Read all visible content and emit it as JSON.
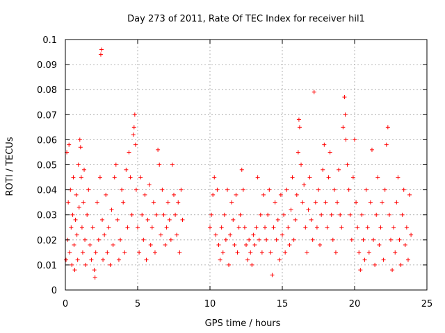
{
  "chart_data": {
    "type": "scatter",
    "title": "Day 273 of 2011, Rate Of TEC Index for receiver hil1",
    "xlabel": "GPS time / hours",
    "ylabel": "ROTI / TECUs",
    "xlim": [
      0,
      25
    ],
    "ylim": [
      0,
      0.1
    ],
    "x_ticks": [
      "0",
      "5",
      "10",
      "15",
      "20",
      "25"
    ],
    "y_ticks": [
      "0",
      "0.01",
      "0.02",
      "0.03",
      "0.04",
      "0.05",
      "0.06",
      "0.07",
      "0.08",
      "0.09",
      "0.1"
    ],
    "grid": true,
    "marker": "plus",
    "color": "#ff0000",
    "series": [
      {
        "points": [
          [
            0.05,
            0.012
          ],
          [
            0.1,
            0.055
          ],
          [
            0.15,
            0.02
          ],
          [
            0.2,
            0.035
          ],
          [
            0.25,
            0.058
          ],
          [
            0.3,
            0.015
          ],
          [
            0.35,
            0.04
          ],
          [
            0.4,
            0.025
          ],
          [
            0.45,
            0.01
          ],
          [
            0.5,
            0.03
          ],
          [
            0.55,
            0.045
          ],
          [
            0.6,
            0.018
          ],
          [
            0.65,
            0.008
          ],
          [
            0.7,
            0.028
          ],
          [
            0.75,
            0.038
          ],
          [
            0.8,
            0.022
          ],
          [
            0.85,
            0.012
          ],
          [
            0.9,
            0.05
          ],
          [
            0.95,
            0.033
          ],
          [
            1.0,
            0.06
          ],
          [
            1.05,
            0.057
          ],
          [
            1.1,
            0.045
          ],
          [
            1.15,
            0.025
          ],
          [
            1.2,
            0.015
          ],
          [
            1.25,
            0.035
          ],
          [
            1.3,
            0.048
          ],
          [
            1.35,
            0.02
          ],
          [
            1.4,
            0.01
          ],
          [
            1.5,
            0.03
          ],
          [
            1.6,
            0.04
          ],
          [
            1.7,
            0.018
          ],
          [
            1.8,
            0.012
          ],
          [
            1.9,
            0.025
          ],
          [
            2.0,
            0.008
          ],
          [
            2.05,
            0.005
          ],
          [
            2.1,
            0.015
          ],
          [
            2.2,
            0.035
          ],
          [
            2.3,
            0.02
          ],
          [
            2.4,
            0.045
          ],
          [
            2.45,
            0.094
          ],
          [
            2.5,
            0.096
          ],
          [
            2.55,
            0.028
          ],
          [
            2.6,
            0.012
          ],
          [
            2.7,
            0.022
          ],
          [
            2.8,
            0.038
          ],
          [
            2.9,
            0.015
          ],
          [
            3.0,
            0.025
          ],
          [
            3.1,
            0.01
          ],
          [
            3.2,
            0.032
          ],
          [
            3.3,
            0.018
          ],
          [
            3.4,
            0.045
          ],
          [
            3.5,
            0.05
          ],
          [
            3.6,
            0.028
          ],
          [
            3.7,
            0.012
          ],
          [
            3.8,
            0.02
          ],
          [
            3.9,
            0.04
          ],
          [
            4.0,
            0.035
          ],
          [
            4.1,
            0.015
          ],
          [
            4.2,
            0.048
          ],
          [
            4.3,
            0.025
          ],
          [
            4.4,
            0.055
          ],
          [
            4.5,
            0.045
          ],
          [
            4.6,
            0.03
          ],
          [
            4.7,
            0.062
          ],
          [
            4.75,
            0.065
          ],
          [
            4.8,
            0.07
          ],
          [
            4.85,
            0.058
          ],
          [
            4.9,
            0.04
          ],
          [
            5.0,
            0.025
          ],
          [
            5.1,
            0.015
          ],
          [
            5.2,
            0.045
          ],
          [
            5.3,
            0.03
          ],
          [
            5.4,
            0.02
          ],
          [
            5.5,
            0.038
          ],
          [
            5.6,
            0.012
          ],
          [
            5.7,
            0.028
          ],
          [
            5.8,
            0.042
          ],
          [
            5.9,
            0.018
          ],
          [
            6.0,
            0.025
          ],
          [
            6.1,
            0.035
          ],
          [
            6.2,
            0.015
          ],
          [
            6.3,
            0.03
          ],
          [
            6.4,
            0.056
          ],
          [
            6.5,
            0.05
          ],
          [
            6.6,
            0.022
          ],
          [
            6.7,
            0.04
          ],
          [
            6.8,
            0.03
          ],
          [
            6.9,
            0.018
          ],
          [
            7.0,
            0.025
          ],
          [
            7.1,
            0.035
          ],
          [
            7.2,
            0.028
          ],
          [
            7.3,
            0.02
          ],
          [
            7.4,
            0.05
          ],
          [
            7.5,
            0.038
          ],
          [
            7.6,
            0.03
          ],
          [
            7.7,
            0.022
          ],
          [
            7.8,
            0.035
          ],
          [
            7.9,
            0.015
          ],
          [
            8.0,
            0.04
          ],
          [
            8.1,
            0.028
          ],
          [
            10.0,
            0.025
          ],
          [
            10.1,
            0.03
          ],
          [
            10.2,
            0.038
          ],
          [
            10.3,
            0.045
          ],
          [
            10.4,
            0.022
          ],
          [
            10.5,
            0.04
          ],
          [
            10.6,
            0.018
          ],
          [
            10.7,
            0.012
          ],
          [
            10.8,
            0.025
          ],
          [
            10.9,
            0.015
          ],
          [
            11.0,
            0.03
          ],
          [
            11.1,
            0.02
          ],
          [
            11.2,
            0.04
          ],
          [
            11.3,
            0.01
          ],
          [
            11.4,
            0.022
          ],
          [
            11.5,
            0.035
          ],
          [
            11.6,
            0.028
          ],
          [
            11.7,
            0.018
          ],
          [
            11.8,
            0.038
          ],
          [
            11.9,
            0.015
          ],
          [
            12.0,
            0.025
          ],
          [
            12.1,
            0.03
          ],
          [
            12.2,
            0.048
          ],
          [
            12.3,
            0.04
          ],
          [
            12.4,
            0.025
          ],
          [
            12.5,
            0.018
          ],
          [
            12.6,
            0.012
          ],
          [
            12.7,
            0.02
          ],
          [
            12.8,
            0.015
          ],
          [
            12.9,
            0.01
          ],
          [
            13.0,
            0.022
          ],
          [
            13.1,
            0.018
          ],
          [
            13.2,
            0.025
          ],
          [
            13.3,
            0.045
          ],
          [
            13.4,
            0.02
          ],
          [
            13.5,
            0.03
          ],
          [
            13.6,
            0.015
          ],
          [
            13.7,
            0.038
          ],
          [
            13.8,
            0.025
          ],
          [
            13.9,
            0.02
          ],
          [
            14.0,
            0.03
          ],
          [
            14.1,
            0.04
          ],
          [
            14.2,
            0.015
          ],
          [
            14.3,
            0.006
          ],
          [
            14.4,
            0.025
          ],
          [
            14.5,
            0.035
          ],
          [
            14.6,
            0.02
          ],
          [
            14.7,
            0.028
          ],
          [
            14.8,
            0.012
          ],
          [
            14.9,
            0.038
          ],
          [
            15.0,
            0.022
          ],
          [
            15.1,
            0.03
          ],
          [
            15.2,
            0.015
          ],
          [
            15.3,
            0.04
          ],
          [
            15.4,
            0.025
          ],
          [
            15.5,
            0.018
          ],
          [
            15.6,
            0.032
          ],
          [
            15.7,
            0.045
          ],
          [
            15.8,
            0.02
          ],
          [
            15.9,
            0.028
          ],
          [
            16.0,
            0.038
          ],
          [
            16.1,
            0.055
          ],
          [
            16.15,
            0.068
          ],
          [
            16.2,
            0.065
          ],
          [
            16.3,
            0.05
          ],
          [
            16.4,
            0.035
          ],
          [
            16.5,
            0.042
          ],
          [
            16.6,
            0.025
          ],
          [
            16.7,
            0.015
          ],
          [
            16.8,
            0.032
          ],
          [
            16.9,
            0.045
          ],
          [
            17.0,
            0.028
          ],
          [
            17.1,
            0.02
          ],
          [
            17.2,
            0.079
          ],
          [
            17.3,
            0.035
          ],
          [
            17.4,
            0.025
          ],
          [
            17.5,
            0.04
          ],
          [
            17.6,
            0.018
          ],
          [
            17.7,
            0.03
          ],
          [
            17.8,
            0.048
          ],
          [
            17.9,
            0.058
          ],
          [
            18.0,
            0.035
          ],
          [
            18.1,
            0.025
          ],
          [
            18.2,
            0.045
          ],
          [
            18.3,
            0.055
          ],
          [
            18.4,
            0.03
          ],
          [
            18.5,
            0.02
          ],
          [
            18.6,
            0.04
          ],
          [
            18.7,
            0.015
          ],
          [
            18.8,
            0.035
          ],
          [
            18.9,
            0.048
          ],
          [
            19.0,
            0.03
          ],
          [
            19.1,
            0.025
          ],
          [
            19.2,
            0.065
          ],
          [
            19.3,
            0.077
          ],
          [
            19.35,
            0.07
          ],
          [
            19.4,
            0.06
          ],
          [
            19.5,
            0.05
          ],
          [
            19.6,
            0.04
          ],
          [
            19.7,
            0.03
          ],
          [
            19.8,
            0.02
          ],
          [
            19.9,
            0.045
          ],
          [
            20.0,
            0.06
          ],
          [
            20.1,
            0.035
          ],
          [
            20.2,
            0.025
          ],
          [
            20.3,
            0.015
          ],
          [
            20.4,
            0.008
          ],
          [
            20.5,
            0.03
          ],
          [
            20.6,
            0.02
          ],
          [
            20.7,
            0.012
          ],
          [
            20.8,
            0.04
          ],
          [
            20.9,
            0.025
          ],
          [
            21.0,
            0.015
          ],
          [
            21.1,
            0.035
          ],
          [
            21.2,
            0.056
          ],
          [
            21.3,
            0.02
          ],
          [
            21.4,
            0.01
          ],
          [
            21.5,
            0.03
          ],
          [
            21.6,
            0.045
          ],
          [
            21.7,
            0.018
          ],
          [
            21.8,
            0.025
          ],
          [
            21.9,
            0.035
          ],
          [
            22.0,
            0.012
          ],
          [
            22.1,
            0.04
          ],
          [
            22.2,
            0.058
          ],
          [
            22.3,
            0.065
          ],
          [
            22.4,
            0.03
          ],
          [
            22.5,
            0.02
          ],
          [
            22.6,
            0.008
          ],
          [
            22.7,
            0.025
          ],
          [
            22.8,
            0.015
          ],
          [
            22.9,
            0.035
          ],
          [
            23.0,
            0.045
          ],
          [
            23.1,
            0.02
          ],
          [
            23.2,
            0.01
          ],
          [
            23.3,
            0.03
          ],
          [
            23.4,
            0.04
          ],
          [
            23.5,
            0.018
          ],
          [
            23.6,
            0.025
          ],
          [
            23.7,
            0.012
          ],
          [
            23.8,
            0.038
          ],
          [
            23.9,
            0.022
          ]
        ]
      }
    ]
  }
}
